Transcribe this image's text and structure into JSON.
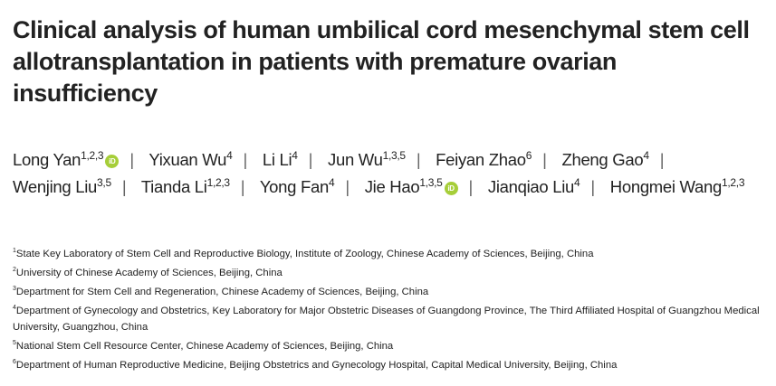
{
  "title": "Clinical analysis of human umbilical cord mesenchymal stem cell allotransplantation in patients with premature ovarian insufficiency",
  "authors": [
    {
      "name": "Long Yan",
      "sup": "1,2,3",
      "orcid": true
    },
    {
      "name": "Yixuan Wu",
      "sup": "4"
    },
    {
      "name": "Li Li",
      "sup": "4"
    },
    {
      "name": "Jun Wu",
      "sup": "1,3,5"
    },
    {
      "name": "Feiyan Zhao",
      "sup": "6"
    },
    {
      "name": "Zheng Gao",
      "sup": "4"
    },
    {
      "name": "Wenjing Liu",
      "sup": "3,5"
    },
    {
      "name": "Tianda Li",
      "sup": "1,2,3"
    },
    {
      "name": "Yong Fan",
      "sup": "4"
    },
    {
      "name": "Jie Hao",
      "sup": "1,3,5",
      "orcid": true
    },
    {
      "name": "Jianqiao Liu",
      "sup": "4"
    },
    {
      "name": "Hongmei Wang",
      "sup": "1,2,3"
    }
  ],
  "separator": "|",
  "orcid_label": "iD",
  "orcid_color": "#a6ce39",
  "affiliations": [
    {
      "num": "1",
      "text": "State Key Laboratory of Stem Cell and Reproductive Biology, Institute of Zoology, Chinese Academy of Sciences, Beijing, China"
    },
    {
      "num": "2",
      "text": "University of Chinese Academy of Sciences, Beijing, China"
    },
    {
      "num": "3",
      "text": "Department for Stem Cell and Regeneration, Chinese Academy of Sciences, Beijing, China"
    },
    {
      "num": "4",
      "text": "Department of Gynecology and Obstetrics, Key Laboratory for Major Obstetric Diseases of Guangdong Province, The Third Affiliated Hospital of Guangzhou Medical University, Guangzhou, China"
    },
    {
      "num": "5",
      "text": "National Stem Cell Resource Center, Chinese Academy of Sciences, Beijing, China"
    },
    {
      "num": "6",
      "text": "Department of Human Reproductive Medicine, Beijing Obstetrics and Gynecology Hospital, Capital Medical University, Beijing, China"
    }
  ]
}
